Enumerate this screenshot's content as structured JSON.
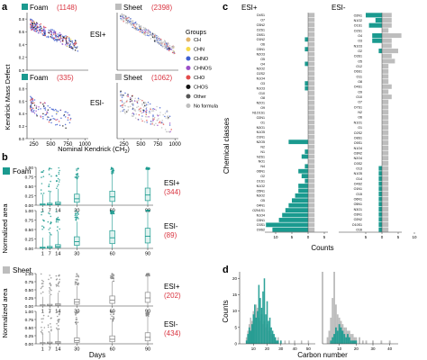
{
  "colors": {
    "foam": "#1a9a8f",
    "sheet": "#bdbdbd",
    "count_red": "#d9333f",
    "axis": "#333333",
    "groups": {
      "CH": "#e2b56b",
      "CHN": "#f6d94a",
      "CHNO": "#3f5fd0",
      "CHNOS": "#9b4fc8",
      "CHO": "#e34b4b",
      "CHOS": "#111111",
      "Other": "#555555",
      "No formula": "#bfbfbf"
    }
  },
  "panel_a": {
    "letter": "a",
    "ylabel": "Kendrick Mass Defect",
    "xlabel": "Nominal Kendrick (CH",
    "xlabel_sub": "2",
    "xlabel_close": ")",
    "xticks": [
      "250",
      "500",
      "750",
      "1000"
    ],
    "yticks": [
      "0.8",
      "0.6",
      "0.4",
      "0.2",
      "0.0"
    ],
    "foam_label": "Foam",
    "sheet_label": "Sheet",
    "esi_pos": "ESI+",
    "esi_neg": "ESI-",
    "foam_pos_n": "(1148)",
    "sheet_pos_n": "(2398)",
    "foam_neg_n": "(335)",
    "sheet_neg_n": "(1062)",
    "legend_title": "Groups",
    "legend_items": [
      "CH",
      "CHN",
      "CHNO",
      "CHNOS",
      "CHO",
      "CHOS",
      "Other",
      "No formula"
    ]
  },
  "panel_b": {
    "letter": "b",
    "ylabel": "Normalized area",
    "xlabel": "Days",
    "xticks": [
      "1",
      "7",
      "14",
      "30",
      "60",
      "90"
    ],
    "yticks": [
      "1.00",
      "0.75",
      "0.50",
      "0.25",
      "0.00"
    ],
    "foam_label": "Foam",
    "sheet_label": "Sheet",
    "rows": [
      {
        "esi": "ESI+",
        "n": "(344)"
      },
      {
        "esi": "ESI-",
        "n": "(89)"
      },
      {
        "esi": "ESI+",
        "n": "(202)"
      },
      {
        "esi": "ESI-",
        "n": "(434)"
      }
    ]
  },
  "panel_c": {
    "letter": "c",
    "ylabel": "Chemical classes",
    "xlabel": "Counts",
    "esi_pos": "ESI+",
    "esi_neg": "ESI-",
    "left_xticks": [
      "10",
      "5",
      "0",
      "5"
    ],
    "right_xticks": [
      "5",
      "0",
      "5",
      "10"
    ],
    "left_labels": [
      "O4S1",
      "O7",
      "O3N2",
      "O2S1",
      "O5S1",
      "O1N2",
      "O6",
      "O3N1",
      "N2O3",
      "O5",
      "O4",
      "N2O2",
      "O2S2",
      "N1O4",
      "O3",
      "N1O3",
      "O10",
      "O8",
      "N2O1",
      "O9",
      "N1O1S1",
      "O2N1",
      "O1",
      "N3O1",
      "N1O5",
      "O1N1",
      "N2O5",
      "N2",
      "N1",
      "N2S1",
      "NO1",
      "N4",
      "O6N1",
      "O2",
      "O1S1",
      "N1O2",
      "O5N1",
      "N3O2",
      "O5",
      "O4N1",
      "O2N1S1",
      "N1O4",
      "O3N1",
      "O3S1",
      "O9S2"
    ],
    "right_labels": [
      "O2N1",
      "N1O2",
      "O1S1",
      "O2S1",
      "O4",
      "O3",
      "N1O3",
      "O2",
      "O3S1",
      "O5",
      "O12",
      "O6S1",
      "O11",
      "O8",
      "O4S1",
      "O9",
      "O10",
      "O7",
      "O7S1",
      "N2",
      "O6",
      "N1O1",
      "O1",
      "O2S2",
      "O8S1",
      "O5S1",
      "N1O4",
      "O3N2",
      "N2O4",
      "O3S2",
      "O13",
      "N1O5",
      "O14",
      "O4S2",
      "O1N1",
      "O15",
      "O6N1",
      "O5N1",
      "N3O1",
      "O3N1",
      "O2N2",
      "O10S1",
      "O16"
    ]
  },
  "panel_d": {
    "letter": "d",
    "ylabel": "Counts",
    "xlabel": "Carbon number",
    "yticks": [
      "20",
      "15",
      "10",
      "5",
      "0"
    ],
    "left_xticks": [
      "10",
      "20",
      "30",
      "40",
      "50"
    ],
    "right_xticks": [
      "10",
      "20",
      "30",
      "40"
    ]
  },
  "chart_data": [
    {
      "type": "scatter",
      "panel": "a",
      "title": "",
      "xlabel": "Nominal Kendrick (CH2)",
      "ylabel": "Kendrick Mass Defect",
      "xlim": [
        150,
        1050
      ],
      "ylim": [
        0,
        0.9
      ],
      "subplots": [
        {
          "name": "Foam",
          "mode": "ESI+",
          "n": 1148
        },
        {
          "name": "Sheet",
          "mode": "ESI+",
          "n": 2398
        },
        {
          "name": "Foam",
          "mode": "ESI-",
          "n": 335
        },
        {
          "name": "Sheet",
          "mode": "ESI-",
          "n": 1062
        }
      ],
      "legend": [
        "CH",
        "CHN",
        "CHNO",
        "CHNOS",
        "CHO",
        "CHOS",
        "Other",
        "No formula"
      ]
    },
    {
      "type": "box",
      "panel": "b",
      "xlabel": "Days",
      "ylabel": "Normalized area",
      "categories": [
        1,
        7,
        14,
        30,
        60,
        90
      ],
      "ylim": [
        0,
        1
      ],
      "series": [
        {
          "name": "Foam",
          "mode": "ESI+",
          "n": 344,
          "medians": [
            0.01,
            0.02,
            0.04,
            0.17,
            0.22,
            0.27
          ]
        },
        {
          "name": "Foam",
          "mode": "ESI-",
          "n": 89,
          "medians": [
            0.01,
            0.02,
            0.05,
            0.18,
            0.28,
            0.32
          ]
        },
        {
          "name": "Sheet",
          "mode": "ESI+",
          "n": 202,
          "medians": [
            0.01,
            0.02,
            0.03,
            0.12,
            0.18,
            0.25
          ]
        },
        {
          "name": "Sheet",
          "mode": "ESI-",
          "n": 434,
          "medians": [
            0.01,
            0.02,
            0.03,
            0.1,
            0.14,
            0.2
          ]
        }
      ]
    },
    {
      "type": "bar",
      "panel": "c",
      "orientation": "horizontal",
      "xlabel": "Counts",
      "ylabel": "Chemical classes",
      "series": [
        {
          "name": "ESI+",
          "foam": [
            0,
            0,
            0,
            0,
            0,
            1,
            0,
            1,
            0,
            0,
            1,
            0,
            0,
            0,
            1,
            1,
            0,
            0,
            0,
            0,
            0,
            0,
            0,
            0,
            0,
            0,
            6,
            0,
            1,
            2,
            0,
            1,
            3,
            2,
            1,
            3,
            3,
            4,
            5,
            6,
            7,
            8,
            9,
            13,
            11
          ],
          "sheet": [
            2,
            2,
            2,
            2,
            2,
            2,
            2,
            2,
            2,
            2,
            2,
            2,
            2,
            2,
            2,
            2,
            2,
            2,
            2,
            2,
            2,
            2,
            2,
            2,
            2,
            2,
            2,
            2,
            2,
            2,
            2,
            2,
            2,
            2,
            2,
            2,
            2,
            2,
            2,
            2,
            2,
            2,
            2,
            2,
            2
          ]
        },
        {
          "name": "ESI-",
          "foam": [
            5,
            2,
            4,
            0,
            3,
            3,
            0,
            1,
            0,
            0,
            0,
            0,
            0,
            0,
            0,
            0,
            0,
            0,
            0,
            0,
            0,
            0,
            0,
            0,
            0,
            0,
            0,
            0,
            0,
            0,
            1,
            1,
            1,
            1,
            1,
            1,
            1,
            1,
            1,
            1,
            1,
            1,
            1
          ],
          "sheet": [
            3,
            3,
            3,
            2,
            6,
            3,
            3,
            5,
            3,
            4,
            2,
            2,
            2,
            2,
            3,
            2,
            3,
            2,
            2,
            2,
            2,
            2,
            2,
            2,
            2,
            2,
            2,
            2,
            2,
            2,
            2,
            2,
            2,
            2,
            2,
            2,
            2,
            2,
            2,
            2,
            2,
            2,
            2
          ]
        }
      ]
    },
    {
      "type": "bar",
      "panel": "d",
      "xlabel": "Carbon number",
      "ylabel": "Counts",
      "ylim": [
        0,
        22
      ],
      "series": [
        {
          "name": "Foam, left",
          "x": [
            5,
            6,
            7,
            8,
            9,
            10,
            11,
            12,
            13,
            14,
            15,
            16,
            17,
            18,
            19,
            20,
            21,
            22,
            23,
            24,
            25,
            26,
            27,
            28,
            29,
            30
          ],
          "values": [
            1,
            3,
            5,
            4,
            6,
            9,
            12,
            8,
            10,
            18,
            14,
            11,
            16,
            20,
            9,
            13,
            7,
            8,
            5,
            4,
            3,
            2,
            1,
            1,
            0,
            1
          ]
        },
        {
          "name": "Sheet, left",
          "x": [
            5,
            6,
            7,
            8,
            9,
            10,
            11,
            12,
            13,
            14,
            15,
            16,
            17,
            18,
            19,
            20,
            21,
            22,
            23,
            24,
            25,
            26,
            28,
            30,
            33,
            36,
            40,
            45,
            50
          ],
          "values": [
            2,
            4,
            6,
            8,
            7,
            10,
            9,
            12,
            11,
            8,
            7,
            9,
            6,
            7,
            5,
            6,
            4,
            5,
            3,
            3,
            2,
            2,
            2,
            1,
            1,
            1,
            1,
            1,
            1
          ]
        },
        {
          "name": "Foam, right",
          "x": [
            5,
            6,
            7,
            8,
            9,
            10,
            11,
            12,
            13,
            14,
            15,
            16,
            17,
            18,
            19,
            20
          ],
          "values": [
            1,
            2,
            3,
            5,
            4,
            6,
            5,
            4,
            3,
            2,
            3,
            2,
            1,
            1,
            1,
            1
          ]
        },
        {
          "name": "Sheet, right",
          "x": [
            3,
            4,
            5,
            6,
            7,
            8,
            9,
            10,
            11,
            12,
            13,
            14,
            15,
            16,
            17,
            18,
            19,
            20,
            22,
            24,
            26,
            30,
            35,
            40
          ],
          "values": [
            2,
            4,
            8,
            14,
            22,
            12,
            9,
            8,
            7,
            6,
            5,
            5,
            4,
            4,
            3,
            3,
            2,
            2,
            2,
            1,
            1,
            1,
            1,
            1
          ]
        }
      ]
    }
  ]
}
